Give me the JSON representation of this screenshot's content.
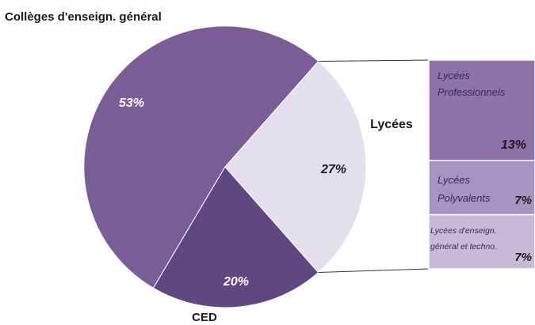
{
  "chart_data": {
    "type": "pie",
    "title": "",
    "slices": [
      {
        "label": "Collèges d'enseign. général",
        "value": 53,
        "display": "53%",
        "color": "#7a5c97"
      },
      {
        "label": "CED",
        "value": 20,
        "display": "20%",
        "color": "#5f4782"
      },
      {
        "label": "Lycées",
        "value": 27,
        "display": "27%",
        "color": "#e4dfec"
      }
    ],
    "breakdown": {
      "of": "Lycées",
      "segments": [
        {
          "label_lines": [
            "Lycées",
            "Professionnels"
          ],
          "value": 13,
          "display": "13%",
          "color": "#8d73aa"
        },
        {
          "label_lines": [
            "Lycées",
            "Polyvalents"
          ],
          "value": 7,
          "display": "7%",
          "color": "#a793bf"
        },
        {
          "label_lines": [
            "Lycées d'enseign.",
            "général et techno."
          ],
          "value": 7,
          "display": "7%",
          "color": "#c7bad7"
        }
      ]
    }
  }
}
